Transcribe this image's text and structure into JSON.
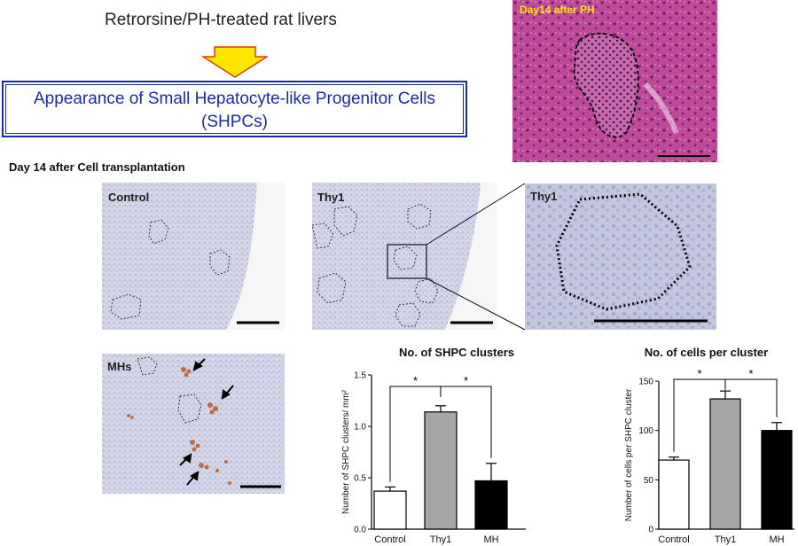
{
  "header": {
    "title": "Retrorsine/PH-treated rat livers",
    "banner_line1": "Appearance of Small Hepatocyte-like Progenitor Cells",
    "banner_line2": "(SHPCs)"
  },
  "he_image": {
    "label": "Day14 after PH"
  },
  "section_label": "Day 14 after Cell transplantation",
  "panels": {
    "control": "Control",
    "thy1": "Thy1",
    "thy1_zoom": "Thy1",
    "mhs": "MHs"
  },
  "colors": {
    "banner_blue": "#1a2aa8",
    "arrow_yellow": "#ffe600",
    "arrow_outline": "#e53a00",
    "he_tissue": "#b8418f",
    "ihc_background": "#d2d4e6",
    "control_bar": "#ffffff",
    "thy1_bar": "#a6a6a6",
    "mh_bar": "#000000"
  },
  "chart_data": [
    {
      "type": "bar",
      "title": "No. of SHPC clusters",
      "ylabel": "Number of SHPC clusters/ mm²",
      "categories": [
        "Control",
        "Thy1",
        "MH"
      ],
      "values": [
        0.37,
        1.14,
        0.47
      ],
      "errors": [
        0.04,
        0.06,
        0.17
      ],
      "ylim": [
        0,
        1.5
      ],
      "yticks": [
        "0.0",
        "0.5",
        "1.0",
        "1.5"
      ],
      "significance": [
        {
          "from": "Control",
          "to": "Thy1",
          "mark": "*"
        },
        {
          "from": "Thy1",
          "to": "MH",
          "mark": "*"
        }
      ]
    },
    {
      "type": "bar",
      "title": "No. of cells per cluster",
      "ylabel": "Number of cells per SHPC cluster",
      "categories": [
        "Control",
        "Thy1",
        "MH"
      ],
      "values": [
        70,
        132,
        100
      ],
      "errors": [
        3,
        8,
        8
      ],
      "ylim": [
        0,
        150
      ],
      "yticks": [
        "0",
        "50",
        "100",
        "150"
      ],
      "significance": [
        {
          "from": "Control",
          "to": "Thy1",
          "mark": "*"
        },
        {
          "from": "Thy1",
          "to": "MH",
          "mark": "*"
        }
      ]
    }
  ]
}
